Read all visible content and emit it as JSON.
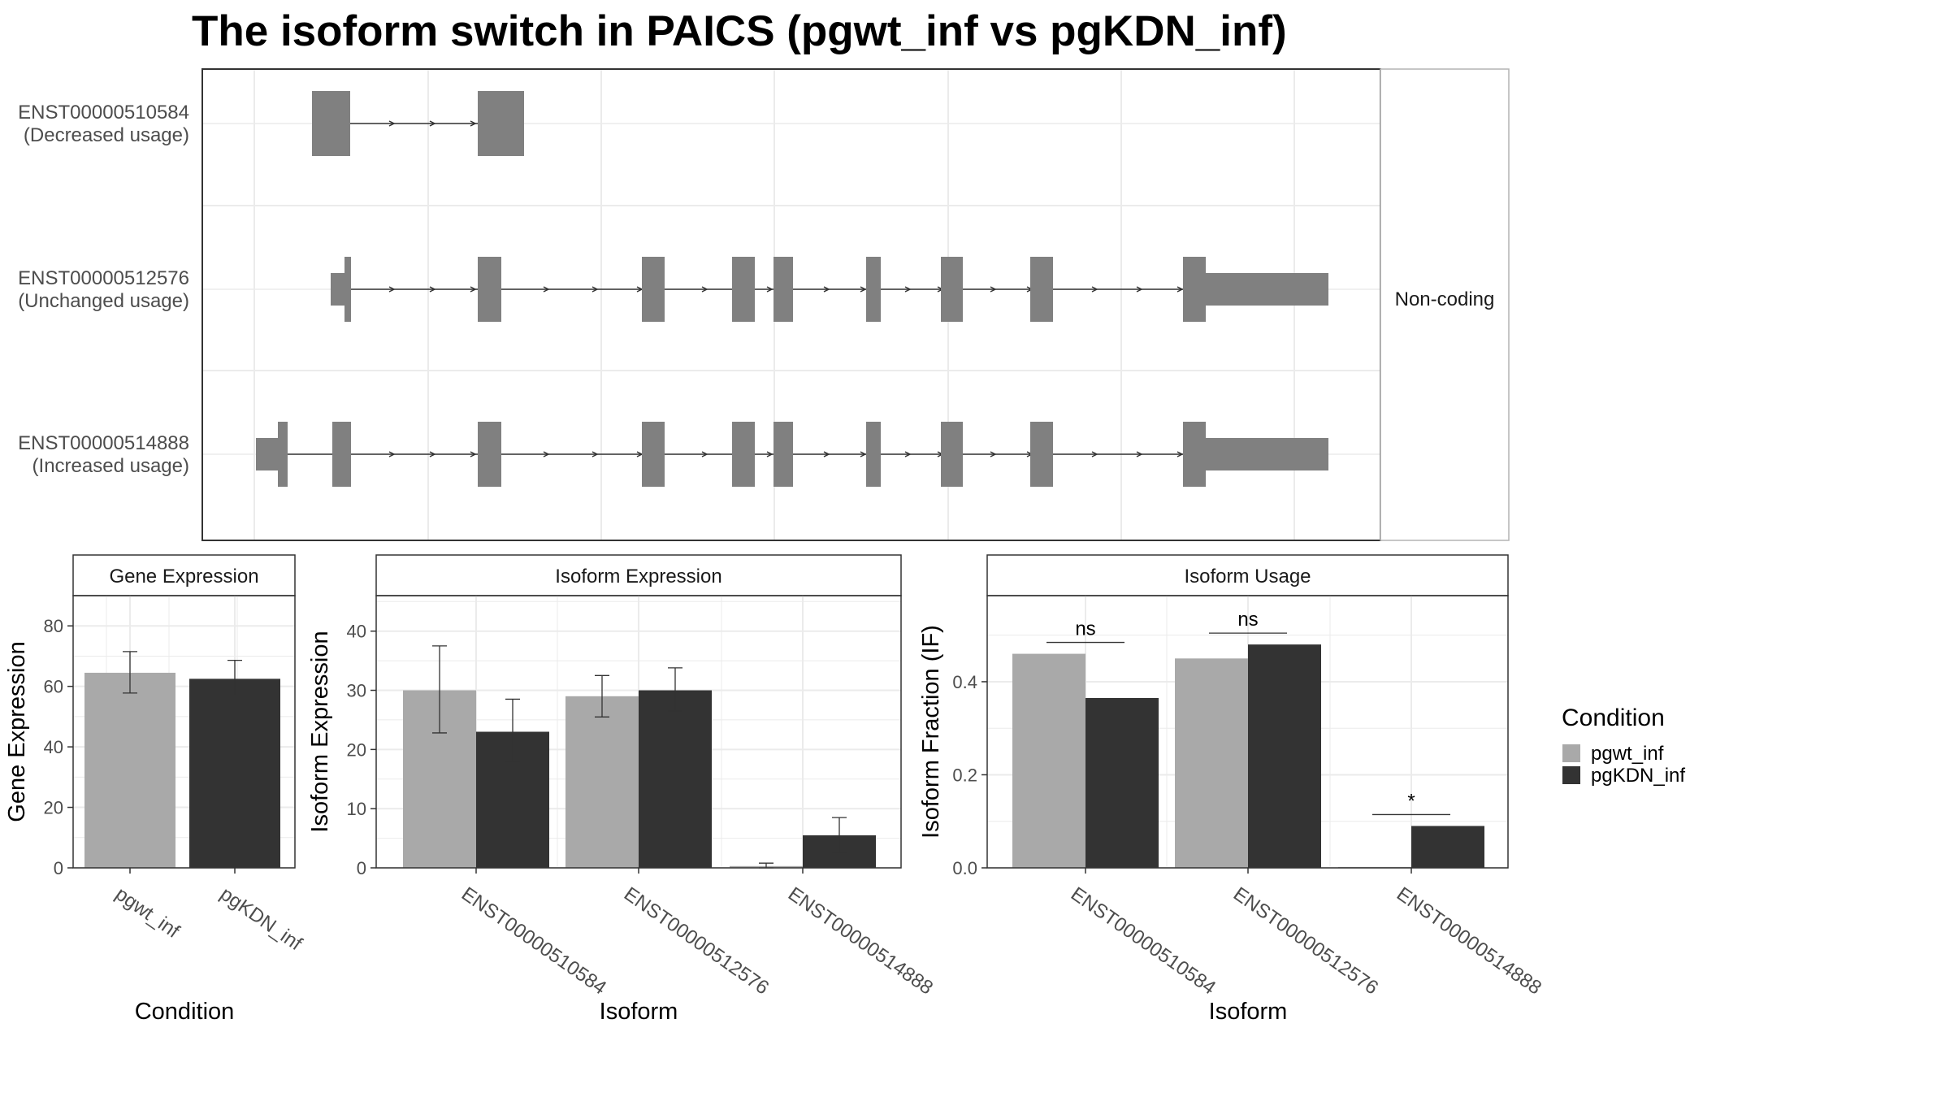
{
  "title": "The isoform switch in PAICS (pgwt_inf vs pgKDN_inf)",
  "colors": {
    "pgwt_inf": "#a9a9a9",
    "pgKDN_inf": "#333333",
    "exon": "#808080",
    "grid": "#ebebeb",
    "panel_border": "#333333"
  },
  "structure_panel": {
    "facet_label": "Non-coding",
    "isoforms": [
      {
        "id": "ENST00000510584",
        "usage": "(Decreased usage)"
      },
      {
        "id": "ENST00000512576",
        "usage": "(Unchanged usage)"
      },
      {
        "id": "ENST00000514888",
        "usage": "(Increased usage)"
      }
    ]
  },
  "legend": {
    "title": "Condition",
    "items": [
      {
        "label": "pgwt_inf",
        "color": "#a9a9a9"
      },
      {
        "label": "pgKDN_inf",
        "color": "#333333"
      }
    ]
  },
  "chart_data": [
    {
      "type": "bar",
      "strip": "Gene Expression",
      "xlabel": "Condition",
      "ylabel": "Gene Expression",
      "categories": [
        "pgwt_inf",
        "pgKDN_inf"
      ],
      "values": [
        64.5,
        62.5
      ],
      "error_low": [
        57.8,
        56.9
      ],
      "error_high": [
        71.5,
        68.6
      ],
      "ylim": [
        0,
        90
      ],
      "yticks": [
        0,
        20,
        40,
        60,
        80
      ]
    },
    {
      "type": "bar",
      "strip": "Isoform Expression",
      "xlabel": "Isoform",
      "ylabel": "Isoform Expression",
      "categories": [
        "ENST00000510584",
        "ENST00000512576",
        "ENST00000514888"
      ],
      "series": [
        {
          "name": "pgwt_inf",
          "values": [
            30.0,
            29.0,
            0.3
          ],
          "error_low": [
            22.8,
            25.5,
            0.0
          ],
          "error_high": [
            37.5,
            32.5,
            0.8
          ]
        },
        {
          "name": "pgKDN_inf",
          "values": [
            23.0,
            30.0,
            5.5
          ],
          "error_low": [
            18.0,
            26.5,
            2.5
          ],
          "error_high": [
            28.5,
            33.8,
            8.5
          ]
        }
      ],
      "ylim": [
        0,
        46
      ],
      "yticks": [
        0,
        10,
        20,
        30,
        40
      ]
    },
    {
      "type": "bar",
      "strip": "Isoform Usage",
      "xlabel": "Isoform",
      "ylabel": "Isoform Fraction (IF)",
      "categories": [
        "ENST00000510584",
        "ENST00000512576",
        "ENST00000514888"
      ],
      "series": [
        {
          "name": "pgwt_inf",
          "values": [
            0.46,
            0.45,
            0.002
          ]
        },
        {
          "name": "pgKDN_inf",
          "values": [
            0.365,
            0.48,
            0.09
          ]
        }
      ],
      "annotations": [
        "ns",
        "ns",
        "*"
      ],
      "ylim": [
        0,
        0.585
      ],
      "yticks": [
        0.0,
        0.2,
        0.4
      ],
      "ytick_labels": [
        "0.0",
        "0.2",
        "0.4"
      ]
    }
  ]
}
